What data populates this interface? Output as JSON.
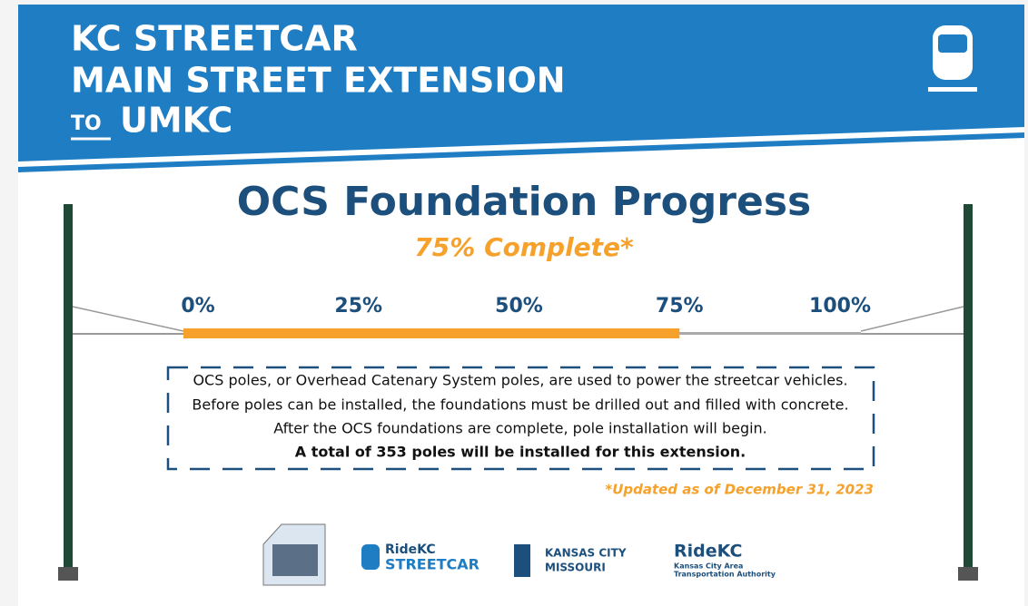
{
  "header": {
    "line1": "KC STREETCAR",
    "line2": "MAIN STREET EXTENSION",
    "to": "TO",
    "line3": "UMKC"
  },
  "title": "OCS Foundation Progress",
  "subtitle": "75% Complete*",
  "progress": {
    "value": 75,
    "xlim": [
      0,
      100
    ],
    "xticks": [
      {
        "value": 0,
        "label": "0%"
      },
      {
        "value": 25,
        "label": "25%"
      },
      {
        "value": 50,
        "label": "50%"
      },
      {
        "value": 75,
        "label": "75%"
      },
      {
        "value": 100,
        "label": "100%"
      }
    ],
    "color": "#f6a12c"
  },
  "description": [
    "OCS poles, or Overhead Catenary System poles, are used to power the streetcar vehicles.",
    "Before poles can be installed, the foundations must be drilled out and filled with concrete.",
    "After the OCS foundations are complete, pole installation will begin.",
    "A total of 353 poles will be installed for this extension."
  ],
  "footnote": "*Updated as of December 31, 2023",
  "logos": [
    {
      "line1": "RideKC",
      "line2": "STREETCAR"
    },
    {
      "line1": "KANSAS CITY",
      "line2": "MISSOURI"
    },
    {
      "line1": "RideKC",
      "line2": "Kansas City Area",
      "line3": "Transportation Authority"
    }
  ]
}
